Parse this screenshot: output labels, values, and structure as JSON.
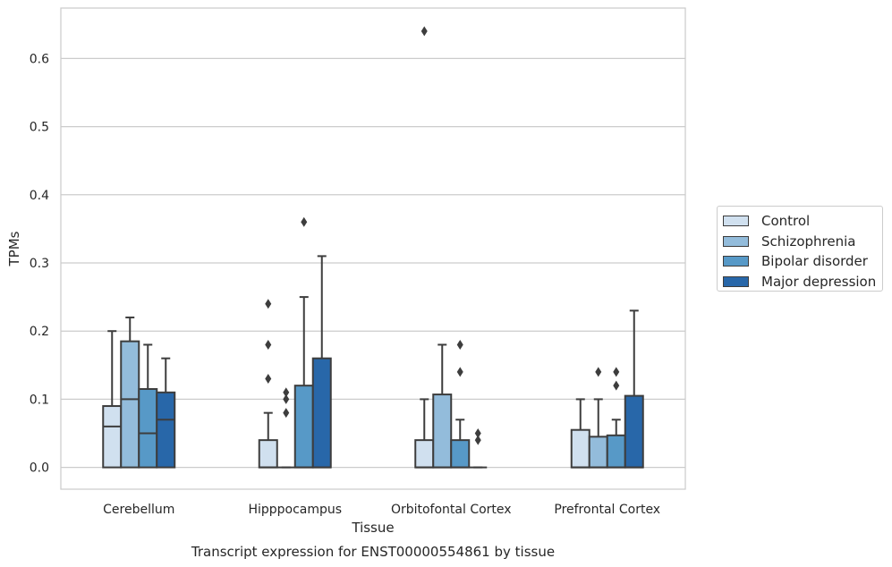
{
  "chart_data": {
    "type": "box",
    "title": "Transcript expression for ENST00000554861 by tissue",
    "xlabel": "Tissue",
    "ylabel": "TPMs",
    "ylim": [
      -0.032,
      0.674
    ],
    "yticks": [
      0.0,
      0.1,
      0.2,
      0.3,
      0.4,
      0.5,
      0.6
    ],
    "ytick_labels": [
      "0.0",
      "0.1",
      "0.2",
      "0.3",
      "0.4",
      "0.5",
      "0.6"
    ],
    "grid": "horizontal",
    "legend_position": "right",
    "categories": [
      "Cerebellum",
      "Hipppocampus",
      "Orbitofontal Cortex",
      "Prefrontal Cortex"
    ],
    "series": [
      {
        "name": "Control",
        "color": "#d0e0ef",
        "boxes": [
          {
            "whisker_low": 0.0,
            "q1": 0.0,
            "median": 0.06,
            "q3": 0.09,
            "whisker_high": 0.2,
            "outliers": []
          },
          {
            "whisker_low": 0.0,
            "q1": 0.0,
            "median": 0.0,
            "q3": 0.04,
            "whisker_high": 0.08,
            "outliers": [
              0.13,
              0.18,
              0.24
            ]
          },
          {
            "whisker_low": 0.0,
            "q1": 0.0,
            "median": 0.0,
            "q3": 0.04,
            "whisker_high": 0.1,
            "outliers": [
              0.64
            ]
          },
          {
            "whisker_low": 0.0,
            "q1": 0.0,
            "median": 0.0,
            "q3": 0.055,
            "whisker_high": 0.1,
            "outliers": []
          }
        ]
      },
      {
        "name": "Schizophrenia",
        "color": "#93bcdb",
        "boxes": [
          {
            "whisker_low": 0.0,
            "q1": 0.0,
            "median": 0.1,
            "q3": 0.185,
            "whisker_high": 0.22,
            "outliers": []
          },
          {
            "whisker_low": 0.0,
            "q1": 0.0,
            "median": 0.0,
            "q3": 0.0,
            "whisker_high": 0.0,
            "outliers": [
              0.08,
              0.1,
              0.11
            ]
          },
          {
            "whisker_low": 0.0,
            "q1": 0.0,
            "median": 0.0,
            "q3": 0.107,
            "whisker_high": 0.18,
            "outliers": []
          },
          {
            "whisker_low": 0.0,
            "q1": 0.0,
            "median": 0.0,
            "q3": 0.045,
            "whisker_high": 0.1,
            "outliers": [
              0.14
            ]
          }
        ]
      },
      {
        "name": "Bipolar disorder",
        "color": "#5799c7",
        "boxes": [
          {
            "whisker_low": 0.0,
            "q1": 0.0,
            "median": 0.05,
            "q3": 0.115,
            "whisker_high": 0.18,
            "outliers": []
          },
          {
            "whisker_low": 0.0,
            "q1": 0.0,
            "median": 0.0,
            "q3": 0.12,
            "whisker_high": 0.25,
            "outliers": [
              0.36
            ]
          },
          {
            "whisker_low": 0.0,
            "q1": 0.0,
            "median": 0.0,
            "q3": 0.04,
            "whisker_high": 0.07,
            "outliers": [
              0.14,
              0.18
            ]
          },
          {
            "whisker_low": 0.0,
            "q1": 0.0,
            "median": 0.0,
            "q3": 0.047,
            "whisker_high": 0.07,
            "outliers": [
              0.12,
              0.14
            ]
          }
        ]
      },
      {
        "name": "Major depression",
        "color": "#2867a9",
        "boxes": [
          {
            "whisker_low": 0.0,
            "q1": 0.0,
            "median": 0.07,
            "q3": 0.11,
            "whisker_high": 0.16,
            "outliers": []
          },
          {
            "whisker_low": 0.0,
            "q1": 0.0,
            "median": 0.0,
            "q3": 0.16,
            "whisker_high": 0.31,
            "outliers": []
          },
          {
            "whisker_low": 0.0,
            "q1": 0.0,
            "median": 0.0,
            "q3": 0.0,
            "whisker_high": 0.0,
            "outliers": [
              0.04,
              0.05
            ]
          },
          {
            "whisker_low": 0.0,
            "q1": 0.0,
            "median": 0.0,
            "q3": 0.105,
            "whisker_high": 0.23,
            "outliers": []
          }
        ]
      }
    ]
  }
}
